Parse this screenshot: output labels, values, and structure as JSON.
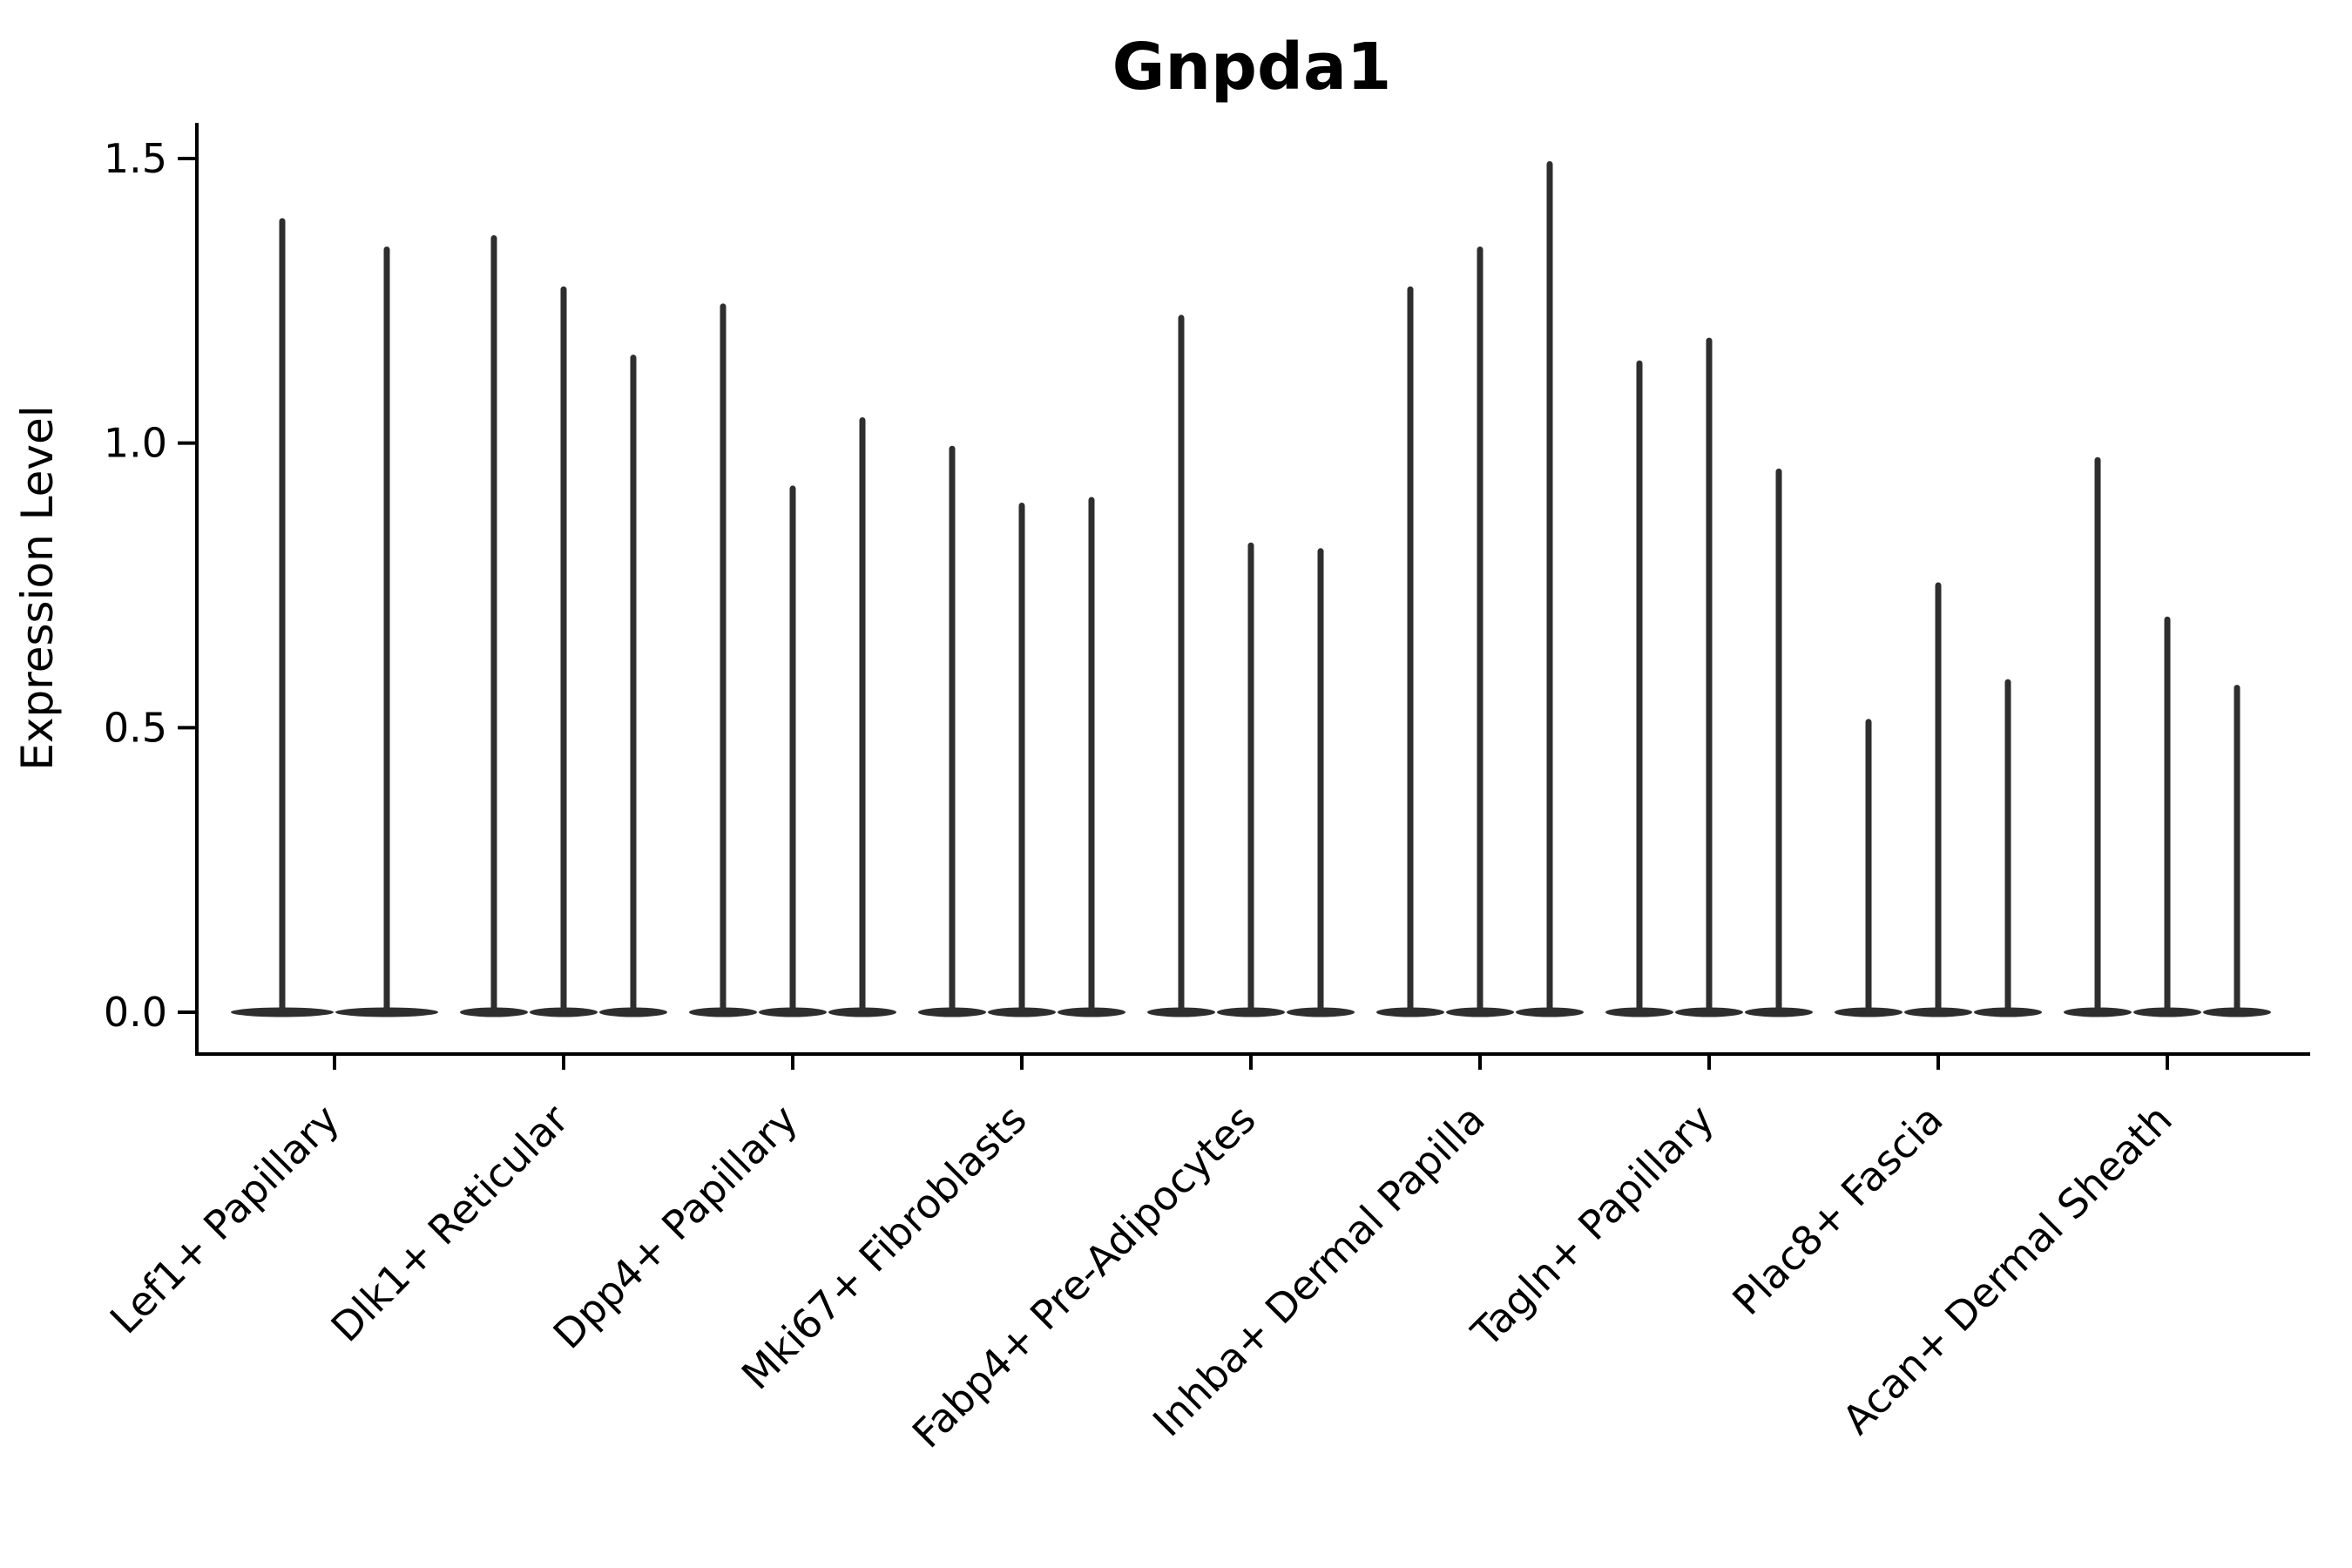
{
  "figure": {
    "title": "Gnpda1"
  },
  "chart_data": {
    "type": "violin",
    "title": "Gnpda1",
    "xlabel": "",
    "ylabel": "Expression Level",
    "ylim": [
      0,
      1.57
    ],
    "yticks": [
      "0.0",
      "0.5",
      "1.0",
      "1.5"
    ],
    "ytick_values": [
      0.0,
      0.5,
      1.0,
      1.5
    ],
    "grid": false,
    "legend": "none",
    "violin_base_value": 0.0,
    "violin_color": "#2e2e2e",
    "categories": [
      "Lef1+ Papillary",
      "Dlk1+ Reticular",
      "Dpp4+ Papillary",
      "Mki67+ Fibroblasts",
      "Fabp4+ Pre-Adipocytes",
      "Inhba+ Dermal Papilla",
      "Tagln+ Papillary",
      "Plac8+ Fascia",
      "Acan+ Dermal Sheath"
    ],
    "groups": [
      {
        "label": "Lef1+ Papillary",
        "violin_peaks": [
          1.39,
          1.34
        ]
      },
      {
        "label": "Dlk1+ Reticular",
        "violin_peaks": [
          1.36,
          1.27,
          1.15
        ]
      },
      {
        "label": "Dpp4+ Papillary",
        "violin_peaks": [
          1.24,
          0.92,
          1.04
        ]
      },
      {
        "label": "Mki67+ Fibroblasts",
        "violin_peaks": [
          0.99,
          0.89,
          0.9
        ]
      },
      {
        "label": "Fabp4+ Pre-Adipocytes",
        "violin_peaks": [
          1.22,
          0.82,
          0.81
        ]
      },
      {
        "label": "Inhba+ Dermal Papilla",
        "violin_peaks": [
          1.27,
          1.34,
          1.49
        ]
      },
      {
        "label": "Tagln+ Papillary",
        "violin_peaks": [
          1.14,
          1.18,
          0.95
        ]
      },
      {
        "label": "Plac8+ Fascia",
        "violin_peaks": [
          0.51,
          0.75,
          0.58
        ]
      },
      {
        "label": "Acan+ Dermal Sheath",
        "violin_peaks": [
          0.97,
          0.69,
          0.57
        ]
      }
    ]
  }
}
